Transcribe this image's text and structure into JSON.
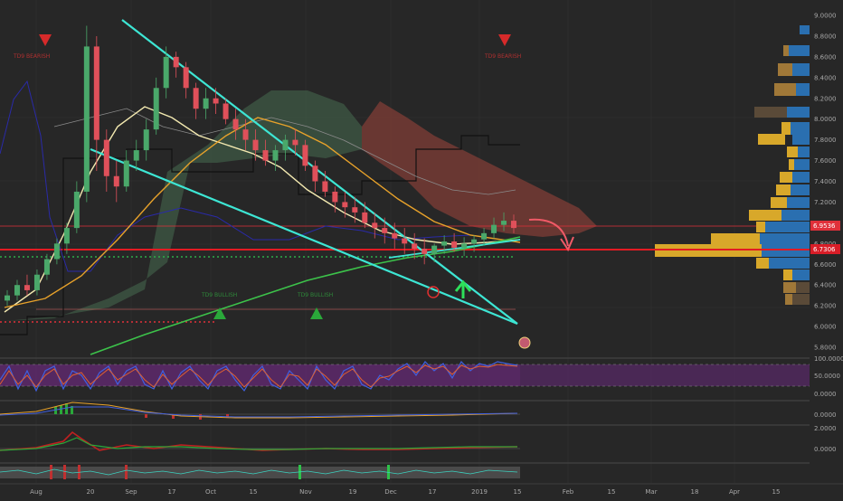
{
  "chart_data": {
    "type": "candlestick",
    "price_axis": {
      "ticks": [
        "9.0000",
        "8.8000",
        "8.6000",
        "8.4000",
        "8.2000",
        "8.0000",
        "7.8000",
        "7.6000",
        "7.4000",
        "7.2000",
        "7.0000",
        "6.8000",
        "6.6000",
        "6.4000",
        "6.2000",
        "6.0000",
        "5.8000"
      ],
      "range": [
        5.7,
        9.1
      ],
      "price_tags": [
        {
          "label": "6.9536",
          "value": 6.9536,
          "color": "#e0303a"
        },
        {
          "label": "6.7306",
          "value": 6.7306,
          "color": "#d81d27"
        }
      ]
    },
    "x_axis": {
      "ticks": [
        "Aug",
        "20",
        "Sep",
        "17",
        "Oct",
        "15",
        "Nov",
        "19",
        "Dec",
        "17",
        "2019",
        "15",
        "Feb",
        "15",
        "Mar",
        "18",
        "Apr",
        "15"
      ]
    },
    "annotations": [
      {
        "text": "TD9 BEARISH",
        "kind": "bearish"
      },
      {
        "text": "TD9 BEARISH",
        "kind": "bearish"
      },
      {
        "text": "TD9 BULLISH",
        "kind": "bullish"
      },
      {
        "text": "TD9 BULLISH",
        "kind": "bullish"
      }
    ],
    "candles": [
      [
        6.25,
        6.35,
        6.2,
        6.3
      ],
      [
        6.3,
        6.45,
        6.25,
        6.4
      ],
      [
        6.4,
        6.5,
        6.3,
        6.35
      ],
      [
        6.35,
        6.55,
        6.3,
        6.5
      ],
      [
        6.5,
        6.7,
        6.45,
        6.65
      ],
      [
        6.65,
        6.85,
        6.6,
        6.8
      ],
      [
        6.8,
        7.0,
        6.7,
        6.95
      ],
      [
        6.95,
        7.4,
        6.9,
        7.3
      ],
      [
        7.3,
        8.9,
        7.2,
        8.7
      ],
      [
        8.7,
        8.8,
        7.5,
        7.8
      ],
      [
        7.8,
        7.9,
        7.3,
        7.45
      ],
      [
        7.45,
        7.6,
        7.2,
        7.35
      ],
      [
        7.35,
        7.7,
        7.3,
        7.6
      ],
      [
        7.6,
        7.8,
        7.5,
        7.7
      ],
      [
        7.7,
        8.0,
        7.6,
        7.9
      ],
      [
        7.9,
        8.4,
        7.85,
        8.3
      ],
      [
        8.3,
        8.7,
        8.2,
        8.6
      ],
      [
        8.6,
        8.65,
        8.4,
        8.5
      ],
      [
        8.5,
        8.55,
        8.2,
        8.3
      ],
      [
        8.3,
        8.35,
        8.0,
        8.1
      ],
      [
        8.1,
        8.3,
        8.0,
        8.2
      ],
      [
        8.2,
        8.3,
        8.05,
        8.15
      ],
      [
        8.15,
        8.2,
        7.95,
        8.0
      ],
      [
        8.0,
        8.1,
        7.8,
        7.9
      ],
      [
        7.9,
        8.0,
        7.7,
        7.8
      ],
      [
        7.8,
        7.9,
        7.6,
        7.7
      ],
      [
        7.7,
        7.8,
        7.55,
        7.6
      ],
      [
        7.6,
        7.75,
        7.5,
        7.7
      ],
      [
        7.7,
        7.85,
        7.6,
        7.8
      ],
      [
        7.8,
        7.9,
        7.65,
        7.75
      ],
      [
        7.75,
        7.8,
        7.5,
        7.55
      ],
      [
        7.55,
        7.6,
        7.3,
        7.4
      ],
      [
        7.4,
        7.5,
        7.25,
        7.3
      ],
      [
        7.3,
        7.35,
        7.1,
        7.2
      ],
      [
        7.2,
        7.3,
        7.05,
        7.15
      ],
      [
        7.15,
        7.25,
        7.0,
        7.1
      ],
      [
        7.1,
        7.2,
        6.95,
        7.0
      ],
      [
        7.0,
        7.1,
        6.85,
        6.95
      ],
      [
        6.95,
        7.05,
        6.8,
        6.9
      ],
      [
        6.9,
        7.0,
        6.75,
        6.85
      ],
      [
        6.85,
        6.95,
        6.7,
        6.8
      ],
      [
        6.8,
        6.9,
        6.65,
        6.75
      ],
      [
        6.75,
        6.85,
        6.6,
        6.7
      ],
      [
        6.7,
        6.8,
        6.62,
        6.78
      ],
      [
        6.78,
        6.88,
        6.7,
        6.82
      ],
      [
        6.82,
        6.9,
        6.72,
        6.76
      ],
      [
        6.76,
        6.86,
        6.68,
        6.8
      ],
      [
        6.8,
        6.88,
        6.72,
        6.84
      ],
      [
        6.84,
        6.95,
        6.78,
        6.9
      ],
      [
        6.9,
        7.05,
        6.85,
        6.98
      ],
      [
        6.98,
        7.1,
        6.92,
        7.02
      ],
      [
        7.02,
        7.08,
        6.9,
        6.95
      ]
    ]
  }
}
